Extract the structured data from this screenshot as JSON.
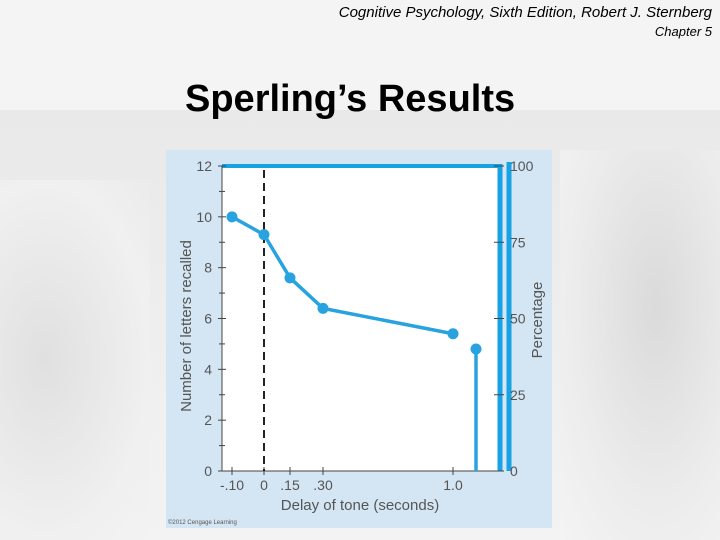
{
  "header": {
    "book_title": "Cognitive Psychology, Sixth Edition, Robert J. Sternberg",
    "chapter": "Chapter 5"
  },
  "slide": {
    "title": "Sperling’s Results"
  },
  "figure": {
    "credit": "©2012 Cengage Learning"
  },
  "colors": {
    "line": "#29a3e0",
    "frame": "#17a2e3",
    "figure_bg": "#d4e6f4"
  },
  "chart_data": {
    "type": "line",
    "title": "",
    "xlabel": "Delay of tone (seconds)",
    "ylabel": "Number of letters recalled",
    "y2label": "Percentage",
    "ylim": [
      0,
      12
    ],
    "y2lim": [
      0,
      100
    ],
    "yticks": [
      "0",
      "2",
      "4",
      "6",
      "8",
      "10",
      "12"
    ],
    "y2ticks": [
      "0",
      "25",
      "50",
      "75",
      "100"
    ],
    "xticks": [
      "-.10",
      "0",
      ".15",
      ".30",
      "1.0"
    ],
    "tone_onset_marker": 0,
    "series": [
      {
        "points": [
          {
            "x": -0.1,
            "y": 10.0
          },
          {
            "x": 0.0,
            "y": 9.3
          },
          {
            "x": 0.15,
            "y": 7.6
          },
          {
            "x": 0.3,
            "y": 6.4
          },
          {
            "x": 1.0,
            "y": 5.4
          }
        ]
      }
    ],
    "baseline_point": {
      "y": 4.8
    },
    "grid": false,
    "legend": "none"
  }
}
